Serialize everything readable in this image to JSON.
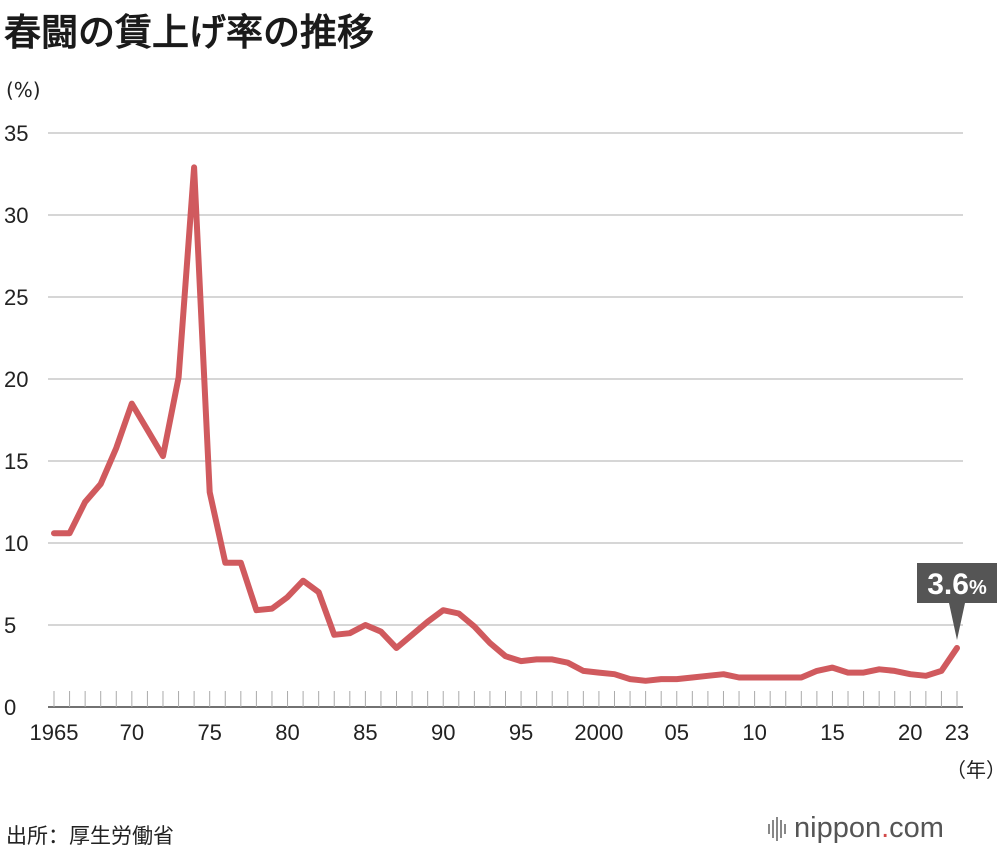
{
  "title": "春闘の賃上げ率の推移",
  "y_unit": "(%)",
  "x_unit": "（年）",
  "source": "出所：厚生労働省",
  "brand": {
    "name": "nippon",
    "dot": ".",
    "suffix": "com"
  },
  "colors": {
    "line": "#d05a5e",
    "grid": "#c8c8c8",
    "callout": "#555555"
  },
  "callout": {
    "label": "3.6",
    "unit": "%",
    "year": 2023,
    "value": 3.6
  },
  "chart_data": {
    "type": "line",
    "title": "春闘の賃上げ率の推移",
    "ylabel": "(%)",
    "xlabel": "（年）",
    "ylim": [
      0,
      35
    ],
    "xlim": [
      1965,
      2023
    ],
    "grid": true,
    "y_ticks": [
      0,
      5,
      10,
      15,
      20,
      25,
      30,
      35
    ],
    "x_ticks": [
      {
        "year": 1965,
        "label": "1965"
      },
      {
        "year": 1970,
        "label": "70"
      },
      {
        "year": 1975,
        "label": "75"
      },
      {
        "year": 1980,
        "label": "80"
      },
      {
        "year": 1985,
        "label": "85"
      },
      {
        "year": 1990,
        "label": "90"
      },
      {
        "year": 1995,
        "label": "95"
      },
      {
        "year": 2000,
        "label": "2000"
      },
      {
        "year": 2005,
        "label": "05"
      },
      {
        "year": 2010,
        "label": "10"
      },
      {
        "year": 2015,
        "label": "15"
      },
      {
        "year": 2020,
        "label": "20"
      },
      {
        "year": 2023,
        "label": "23"
      }
    ],
    "series": [
      {
        "x": [
          1965,
          1966,
          1967,
          1968,
          1969,
          1970,
          1971,
          1972,
          1973,
          1974,
          1975,
          1976,
          1977,
          1978,
          1979,
          1980,
          1981,
          1982,
          1983,
          1984,
          1985,
          1986,
          1987,
          1988,
          1989,
          1990,
          1991,
          1992,
          1993,
          1994,
          1995,
          1996,
          1997,
          1998,
          1999,
          2000,
          2001,
          2002,
          2003,
          2004,
          2005,
          2006,
          2007,
          2008,
          2009,
          2010,
          2011,
          2012,
          2013,
          2014,
          2015,
          2016,
          2017,
          2018,
          2019,
          2020,
          2021,
          2022,
          2023
        ],
        "values": [
          10.6,
          10.6,
          12.5,
          13.6,
          15.8,
          18.5,
          16.9,
          15.3,
          20.1,
          32.9,
          13.1,
          8.8,
          8.8,
          5.9,
          6.0,
          6.7,
          7.7,
          7.0,
          4.4,
          4.5,
          5.0,
          4.6,
          3.6,
          4.4,
          5.2,
          5.9,
          5.7,
          4.9,
          3.9,
          3.1,
          2.8,
          2.9,
          2.9,
          2.7,
          2.2,
          2.1,
          2.0,
          1.7,
          1.6,
          1.7,
          1.7,
          1.8,
          1.9,
          2.0,
          1.8,
          1.8,
          1.8,
          1.8,
          1.8,
          2.2,
          2.4,
          2.1,
          2.1,
          2.3,
          2.2,
          2.0,
          1.9,
          2.2,
          3.6
        ]
      }
    ]
  }
}
